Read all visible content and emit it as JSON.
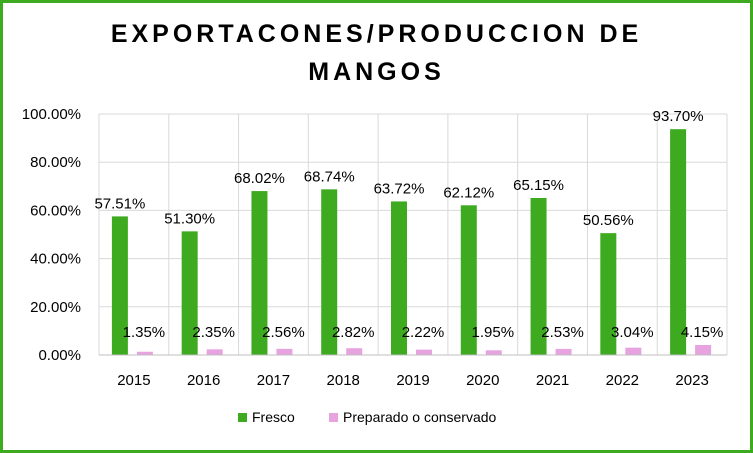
{
  "chart_data": {
    "type": "bar",
    "title_lines": [
      "EXPORTACONES/PRODUCCION DE",
      "MANGOS"
    ],
    "categories": [
      "2015",
      "2016",
      "2017",
      "2018",
      "2019",
      "2020",
      "2021",
      "2022",
      "2023"
    ],
    "series": [
      {
        "name": "Fresco",
        "color": "#3eaa1f",
        "values": [
          57.51,
          51.3,
          68.02,
          68.74,
          63.72,
          62.12,
          65.15,
          50.56,
          93.7
        ],
        "labels": [
          "57.51%",
          "51.30%",
          "68.02%",
          "68.74%",
          "63.72%",
          "62.12%",
          "65.15%",
          "50.56%",
          "93.70%"
        ]
      },
      {
        "name": "Preparado o conservado",
        "color": "#e6a3e0",
        "values": [
          1.35,
          2.35,
          2.56,
          2.82,
          2.22,
          1.95,
          2.53,
          3.04,
          4.15
        ],
        "labels": [
          "1.35%",
          "2.35%",
          "2.56%",
          "2.82%",
          "2.22%",
          "1.95%",
          "2.53%",
          "3.04%",
          "4.15%"
        ]
      }
    ],
    "y_ticks": [
      "0.00%",
      "20.00%",
      "40.00%",
      "60.00%",
      "80.00%",
      "100.00%"
    ],
    "ylim": [
      0,
      100
    ],
    "grid": true,
    "legend_position": "bottom"
  }
}
